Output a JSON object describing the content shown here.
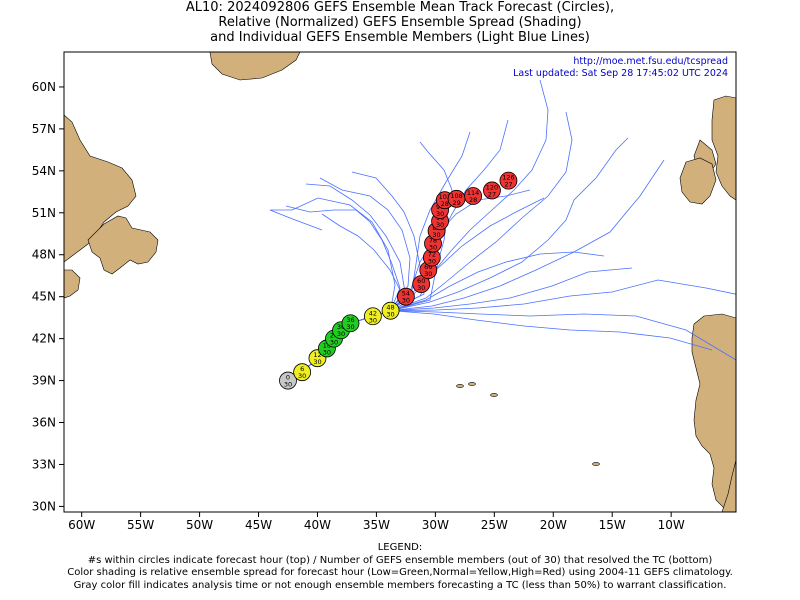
{
  "title_lines": [
    "AL10: 2024092806 GEFS Ensemble Mean Track Forecast (Circles),",
    "Relative (Normalized) GEFS Ensemble Spread (Shading)",
    "and Individual GEFS Ensemble Members (Light Blue Lines)"
  ],
  "map": {
    "url": "http://moe.met.fsu.edu/tcspread",
    "updated": "Last updated: Sat Sep 28 17:45:02 UTC 2024",
    "lon_labels": [
      "60W",
      "55W",
      "50W",
      "45W",
      "40W",
      "35W",
      "30W",
      "25W",
      "20W",
      "15W",
      "10W"
    ],
    "lon_values": [
      -60,
      -55,
      -50,
      -45,
      -40,
      -35,
      -30,
      -25,
      -20,
      -15,
      -10
    ],
    "lat_labels": [
      "60N",
      "57N",
      "54N",
      "51N",
      "48N",
      "45N",
      "42N",
      "39N",
      "36N",
      "33N",
      "30N"
    ],
    "lat_values": [
      60,
      57,
      54,
      51,
      48,
      45,
      42,
      39,
      36,
      33,
      30
    ],
    "lon_range": [
      -61.5,
      -4.5
    ],
    "lat_range": [
      29.6,
      62.5
    ],
    "colors": {
      "land": "#d2b07c",
      "member_tracks": "#4a70ff",
      "ocean": "#ffffff",
      "analysis": "#c8c8c8",
      "low": "#22cc22",
      "normal": "#eeee22",
      "high": "#ee3333"
    }
  },
  "track": [
    {
      "lon": -42.5,
      "lat": 39.0,
      "hour": "0",
      "members": "30",
      "spread": "analysis"
    },
    {
      "lon": -41.3,
      "lat": 39.6,
      "hour": "6",
      "members": "30",
      "spread": "normal"
    },
    {
      "lon": -40.0,
      "lat": 40.6,
      "hour": "12",
      "members": "30",
      "spread": "normal"
    },
    {
      "lon": -39.2,
      "lat": 41.3,
      "hour": "18",
      "members": "30",
      "spread": "low"
    },
    {
      "lon": -38.6,
      "lat": 42.0,
      "hour": "24",
      "members": "30",
      "spread": "low"
    },
    {
      "lon": -38.0,
      "lat": 42.6,
      "hour": "30",
      "members": "30",
      "spread": "low"
    },
    {
      "lon": -37.2,
      "lat": 43.1,
      "hour": "36",
      "members": "30",
      "spread": "low"
    },
    {
      "lon": -35.3,
      "lat": 43.6,
      "hour": "42",
      "members": "30",
      "spread": "normal"
    },
    {
      "lon": -33.8,
      "lat": 44.0,
      "hour": "48",
      "members": "30",
      "spread": "normal"
    },
    {
      "lon": -32.5,
      "lat": 45.0,
      "hour": "54",
      "members": "30",
      "spread": "high"
    },
    {
      "lon": -31.2,
      "lat": 45.9,
      "hour": "60",
      "members": "30",
      "spread": "high"
    },
    {
      "lon": -30.6,
      "lat": 46.9,
      "hour": "66",
      "members": "30",
      "spread": "high"
    },
    {
      "lon": -30.3,
      "lat": 47.8,
      "hour": "72",
      "members": "30",
      "spread": "high"
    },
    {
      "lon": -30.2,
      "lat": 48.8,
      "hour": "78",
      "members": "30",
      "spread": "high"
    },
    {
      "lon": -29.9,
      "lat": 49.7,
      "hour": "84",
      "members": "30",
      "spread": "high"
    },
    {
      "lon": -29.6,
      "lat": 50.4,
      "hour": "90",
      "members": "30",
      "spread": "high"
    },
    {
      "lon": -29.6,
      "lat": 51.2,
      "hour": "96",
      "members": "30",
      "spread": "high"
    },
    {
      "lon": -29.2,
      "lat": 51.9,
      "hour": "102",
      "members": "28",
      "spread": "high"
    },
    {
      "lon": -28.2,
      "lat": 52.0,
      "hour": "108",
      "members": "29",
      "spread": "high"
    },
    {
      "lon": -26.8,
      "lat": 52.2,
      "hour": "114",
      "members": "28",
      "spread": "high"
    },
    {
      "lon": -25.2,
      "lat": 52.6,
      "hour": "120",
      "members": "27",
      "spread": "high"
    },
    {
      "lon": -23.8,
      "lat": 53.3,
      "hour": "126",
      "members": "27",
      "spread": "high"
    }
  ],
  "legend": [
    "LEGEND:",
    "#s within circles indicate forecast hour (top) / Number of GEFS ensemble members (out of 30) that resolved the TC (bottom)",
    "Color shading is relative ensemble spread for forecast hour (Low=Green,Normal=Yellow,High=Red) using 2004-11 GEFS climatology.",
    "Gray color fill indicates analysis time or not enough ensemble members forecasting a TC (less than 50%) to warrant classification."
  ]
}
